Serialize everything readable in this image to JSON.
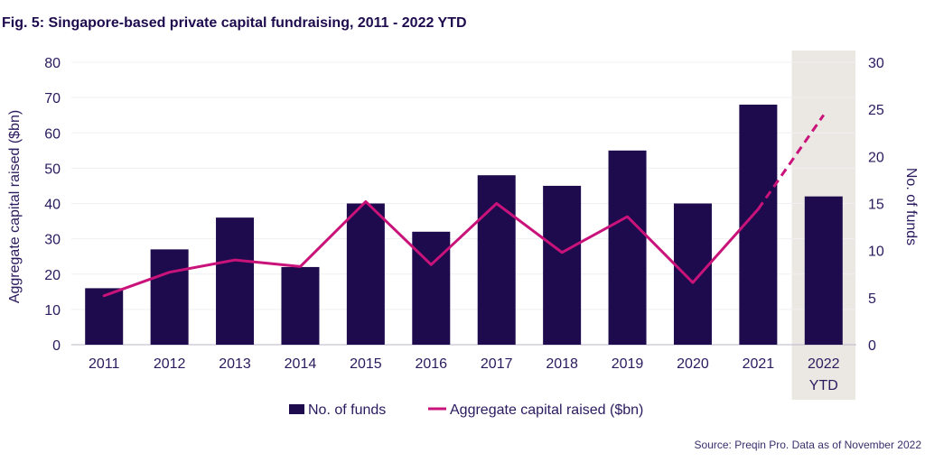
{
  "title": "Fig. 5: Singapore-based private capital fundraising, 2011 - 2022 YTD",
  "source": "Source: Preqin Pro. Data as of November 2022",
  "colors": {
    "bars": "#1e0b4e",
    "line": "#c9127a",
    "highlight": "#ebe7e2",
    "text": "#2a1a5e"
  },
  "chart_data": {
    "type": "bar",
    "title": "Fig. 5: Singapore-based private capital fundraising, 2011 - 2022 YTD",
    "categories": [
      "2011",
      "2012",
      "2013",
      "2014",
      "2015",
      "2016",
      "2017",
      "2018",
      "2019",
      "2020",
      "2021",
      "2022 YTD"
    ],
    "highlighted_category": "2022 YTD",
    "ylabel": "Aggregate capital raised ($bn)",
    "y2label": "No. of funds",
    "ylim": [
      0,
      80
    ],
    "y2lim": [
      0,
      30
    ],
    "yticks": [
      "0",
      "10",
      "20",
      "30",
      "40",
      "50",
      "60",
      "70",
      "80"
    ],
    "y2ticks": [
      "0",
      "5",
      "10",
      "15",
      "20",
      "25",
      "30"
    ],
    "grid": true,
    "series": [
      {
        "name": "No. of funds",
        "type": "bar",
        "axis": "left",
        "values": [
          16,
          27,
          36,
          22,
          40,
          32,
          48,
          45,
          55,
          40,
          68,
          42
        ]
      },
      {
        "name": "Aggregate capital raised ($bn)",
        "type": "line",
        "axis": "right",
        "values": [
          5.2,
          7.7,
          9.0,
          8.3,
          15.2,
          8.5,
          15.0,
          9.8,
          13.6,
          6.6,
          14.4,
          24.4
        ],
        "dashed_from_index": 10
      }
    ],
    "legend": [
      "No. of funds",
      "Aggregate capital raised ($bn)"
    ],
    "legend_position": "bottom"
  }
}
